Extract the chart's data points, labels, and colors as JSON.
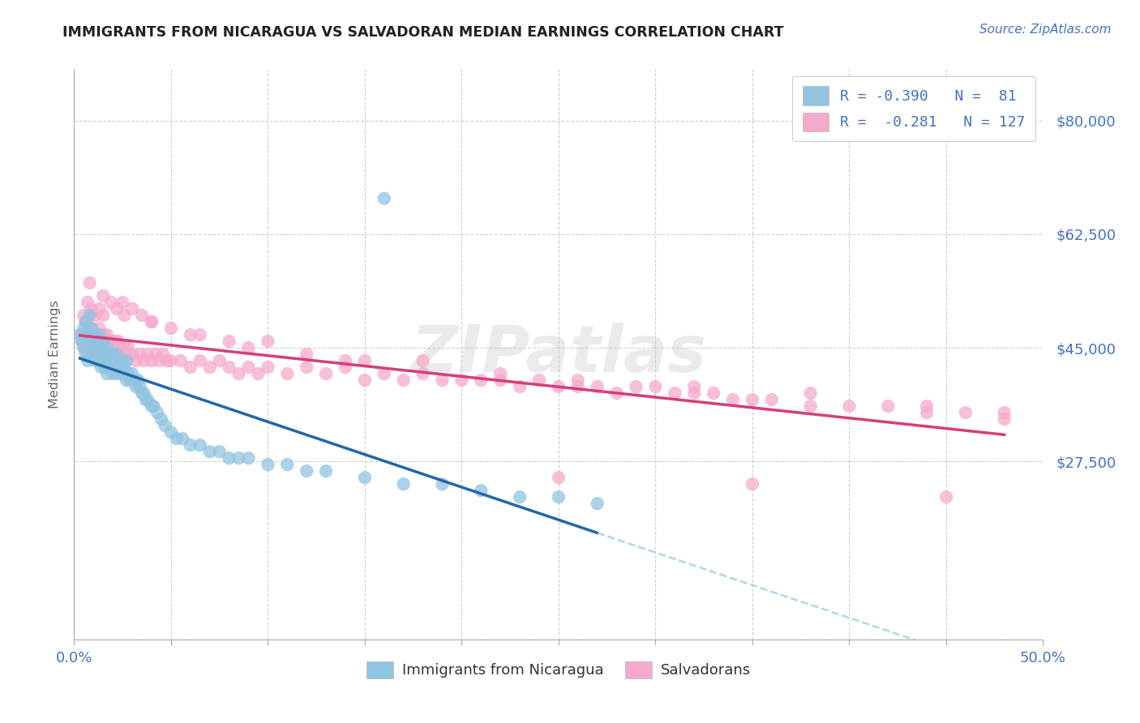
{
  "title": "IMMIGRANTS FROM NICARAGUA VS SALVADORAN MEDIAN EARNINGS CORRELATION CHART",
  "source": "Source: ZipAtlas.com",
  "ylabel": "Median Earnings",
  "xlim": [
    0.0,
    0.5
  ],
  "ylim": [
    0,
    88000
  ],
  "blue_color": "#90c4e0",
  "pink_color": "#f5aacc",
  "blue_line_color": "#2166ac",
  "pink_line_color": "#d63d7a",
  "blue_dash_color": "#90c4e0",
  "axis_label_color": "#4472C4",
  "title_color": "#222222",
  "grid_color": "#d0d0d0",
  "watermark": "ZIPatlas",
  "background_color": "#ffffff",
  "r1": "-0.390",
  "n1": "81",
  "r2": "-0.281",
  "n2": "127",
  "legend1": "Immigrants from Nicaragua",
  "legend2": "Salvadorans",
  "ytick_positions": [
    0,
    27500,
    45000,
    62500,
    80000
  ],
  "ytick_labels": [
    "",
    "$27,500",
    "$45,000",
    "$62,500",
    "$80,000"
  ],
  "blue_scatter_x": [
    0.003,
    0.004,
    0.005,
    0.005,
    0.006,
    0.006,
    0.007,
    0.007,
    0.008,
    0.008,
    0.009,
    0.009,
    0.01,
    0.01,
    0.011,
    0.011,
    0.012,
    0.012,
    0.013,
    0.013,
    0.014,
    0.014,
    0.015,
    0.015,
    0.016,
    0.016,
    0.017,
    0.017,
    0.018,
    0.018,
    0.019,
    0.02,
    0.02,
    0.021,
    0.022,
    0.022,
    0.023,
    0.024,
    0.025,
    0.025,
    0.026,
    0.027,
    0.027,
    0.028,
    0.029,
    0.03,
    0.031,
    0.032,
    0.033,
    0.034,
    0.035,
    0.036,
    0.037,
    0.038,
    0.04,
    0.041,
    0.043,
    0.045,
    0.047,
    0.05,
    0.053,
    0.056,
    0.06,
    0.065,
    0.07,
    0.075,
    0.08,
    0.085,
    0.09,
    0.1,
    0.11,
    0.12,
    0.13,
    0.15,
    0.17,
    0.19,
    0.21,
    0.23,
    0.25,
    0.27,
    0.16
  ],
  "blue_scatter_y": [
    47000,
    46000,
    48000,
    45000,
    49000,
    44000,
    47000,
    43000,
    50000,
    46000,
    48000,
    45000,
    47000,
    44000,
    46000,
    43000,
    46000,
    44000,
    47000,
    43000,
    45000,
    42000,
    46000,
    43000,
    44000,
    42000,
    45000,
    41000,
    44000,
    42000,
    43000,
    44000,
    41000,
    43000,
    44000,
    41000,
    42000,
    42000,
    41000,
    43000,
    42000,
    40000,
    43000,
    41000,
    40000,
    41000,
    40000,
    39000,
    40000,
    39000,
    38000,
    38000,
    37000,
    37000,
    36000,
    36000,
    35000,
    34000,
    33000,
    32000,
    31000,
    31000,
    30000,
    30000,
    29000,
    29000,
    28000,
    28000,
    28000,
    27000,
    27000,
    26000,
    26000,
    25000,
    24000,
    24000,
    23000,
    22000,
    22000,
    21000,
    68000
  ],
  "pink_scatter_x": [
    0.003,
    0.004,
    0.005,
    0.005,
    0.006,
    0.006,
    0.007,
    0.007,
    0.008,
    0.008,
    0.009,
    0.009,
    0.01,
    0.01,
    0.011,
    0.011,
    0.012,
    0.012,
    0.013,
    0.013,
    0.014,
    0.014,
    0.015,
    0.015,
    0.016,
    0.016,
    0.017,
    0.017,
    0.018,
    0.018,
    0.019,
    0.02,
    0.021,
    0.022,
    0.023,
    0.024,
    0.025,
    0.026,
    0.027,
    0.028,
    0.03,
    0.032,
    0.034,
    0.036,
    0.038,
    0.04,
    0.042,
    0.044,
    0.046,
    0.048,
    0.05,
    0.055,
    0.06,
    0.065,
    0.07,
    0.075,
    0.08,
    0.085,
    0.09,
    0.095,
    0.1,
    0.11,
    0.12,
    0.13,
    0.14,
    0.15,
    0.16,
    0.17,
    0.18,
    0.19,
    0.2,
    0.21,
    0.22,
    0.23,
    0.24,
    0.25,
    0.26,
    0.27,
    0.28,
    0.29,
    0.3,
    0.31,
    0.32,
    0.33,
    0.34,
    0.35,
    0.36,
    0.38,
    0.4,
    0.42,
    0.44,
    0.46,
    0.48,
    0.007,
    0.009,
    0.011,
    0.013,
    0.015,
    0.019,
    0.022,
    0.026,
    0.03,
    0.035,
    0.04,
    0.05,
    0.065,
    0.08,
    0.1,
    0.12,
    0.15,
    0.18,
    0.22,
    0.26,
    0.32,
    0.38,
    0.44,
    0.48,
    0.25,
    0.35,
    0.45,
    0.008,
    0.015,
    0.025,
    0.04,
    0.06,
    0.09,
    0.14
  ],
  "pink_scatter_y": [
    47000,
    46000,
    50000,
    45000,
    49000,
    46000,
    48000,
    44000,
    47000,
    46000,
    48000,
    45000,
    47000,
    46000,
    45000,
    46000,
    47000,
    45000,
    48000,
    44000,
    46000,
    45000,
    47000,
    44000,
    46000,
    45000,
    47000,
    44000,
    46000,
    45000,
    46000,
    45000,
    46000,
    45000,
    46000,
    45000,
    44000,
    45000,
    44000,
    45000,
    44000,
    43000,
    44000,
    43000,
    44000,
    43000,
    44000,
    43000,
    44000,
    43000,
    43000,
    43000,
    42000,
    43000,
    42000,
    43000,
    42000,
    41000,
    42000,
    41000,
    42000,
    41000,
    42000,
    41000,
    42000,
    40000,
    41000,
    40000,
    41000,
    40000,
    40000,
    40000,
    40000,
    39000,
    40000,
    39000,
    39000,
    39000,
    38000,
    39000,
    39000,
    38000,
    38000,
    38000,
    37000,
    37000,
    37000,
    36000,
    36000,
    36000,
    35000,
    35000,
    34000,
    52000,
    51000,
    50000,
    51000,
    50000,
    52000,
    51000,
    50000,
    51000,
    50000,
    49000,
    48000,
    47000,
    46000,
    46000,
    44000,
    43000,
    43000,
    41000,
    40000,
    39000,
    38000,
    36000,
    35000,
    25000,
    24000,
    22000,
    55000,
    53000,
    52000,
    49000,
    47000,
    45000,
    43000
  ]
}
